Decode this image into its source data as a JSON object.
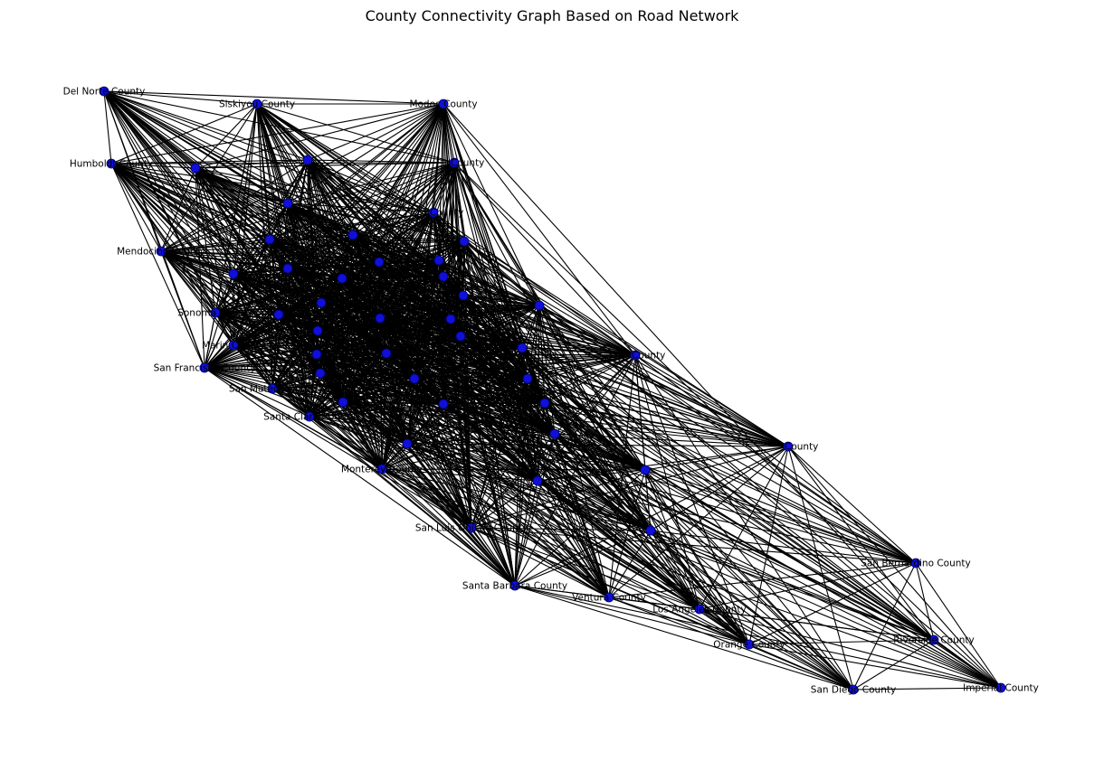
{
  "title": "County Connectivity Graph Based on Road Network",
  "colors": {
    "node": "#1010d8",
    "edge": "#000000"
  },
  "nodes": [
    {
      "id": "del-norte",
      "label": "Del Norte County"
    },
    {
      "id": "siskiyou",
      "label": "Siskiyou County"
    },
    {
      "id": "modoc",
      "label": "Modoc County"
    },
    {
      "id": "humboldt",
      "label": "Humboldt County"
    },
    {
      "id": "trinity",
      "label": ""
    },
    {
      "id": "shasta",
      "label": ""
    },
    {
      "id": "lassen",
      "label": "County"
    },
    {
      "id": "tehama",
      "label": ""
    },
    {
      "id": "plumas",
      "label": "County"
    },
    {
      "id": "mendocino",
      "label": "Mendocino County"
    },
    {
      "id": "glenn",
      "label": ""
    },
    {
      "id": "butte",
      "label": ""
    },
    {
      "id": "sierra",
      "label": ""
    },
    {
      "id": "lake",
      "label": ""
    },
    {
      "id": "colusa",
      "label": ""
    },
    {
      "id": "sutter",
      "label": ""
    },
    {
      "id": "nevada",
      "label": ""
    },
    {
      "id": "placer",
      "label": ""
    },
    {
      "id": "yuba",
      "label": ""
    },
    {
      "id": "sonoma",
      "label": "Sonoma County"
    },
    {
      "id": "napa",
      "label": ""
    },
    {
      "id": "yolo",
      "label": ""
    },
    {
      "id": "sacramento",
      "label": ""
    },
    {
      "id": "el-dorado",
      "label": ""
    },
    {
      "id": "alpine",
      "label": ""
    },
    {
      "id": "marin",
      "label": "Marin County"
    },
    {
      "id": "solano",
      "label": ""
    },
    {
      "id": "contra-costa",
      "label": ""
    },
    {
      "id": "san-joaquin",
      "label": ""
    },
    {
      "id": "amador",
      "label": ""
    },
    {
      "id": "calaveras",
      "label": ""
    },
    {
      "id": "mono",
      "label": "County"
    },
    {
      "id": "san-francisco",
      "label": "San Francisco County"
    },
    {
      "id": "san-mateo",
      "label": "San Mateo County"
    },
    {
      "id": "alameda",
      "label": ""
    },
    {
      "id": "santa-clara",
      "label": "Santa Clara County"
    },
    {
      "id": "stanislaus",
      "label": ""
    },
    {
      "id": "tuolumne",
      "label": ""
    },
    {
      "id": "merced",
      "label": ""
    },
    {
      "id": "mariposa",
      "label": ""
    },
    {
      "id": "santa-cruz",
      "label": ""
    },
    {
      "id": "san-benito",
      "label": ""
    },
    {
      "id": "madera",
      "label": ""
    },
    {
      "id": "fresno",
      "label": ""
    },
    {
      "id": "inyo",
      "label": "County"
    },
    {
      "id": "monterey",
      "label": "Monterey County"
    },
    {
      "id": "kings",
      "label": ""
    },
    {
      "id": "tulare",
      "label": ""
    },
    {
      "id": "kern",
      "label": ""
    },
    {
      "id": "san-luis-obispo",
      "label": "San Luis Obispo County"
    },
    {
      "id": "san-bernardino",
      "label": "San Bernardino County"
    },
    {
      "id": "santa-barbara",
      "label": "Santa Barbara County"
    },
    {
      "id": "ventura",
      "label": "Ventura County"
    },
    {
      "id": "los-angeles",
      "label": "Los Angeles County"
    },
    {
      "id": "orange",
      "label": "Orange County"
    },
    {
      "id": "riverside",
      "label": "Riverside County"
    },
    {
      "id": "san-diego",
      "label": "San Diego County"
    },
    {
      "id": "imperial",
      "label": "Imperial County"
    }
  ]
}
